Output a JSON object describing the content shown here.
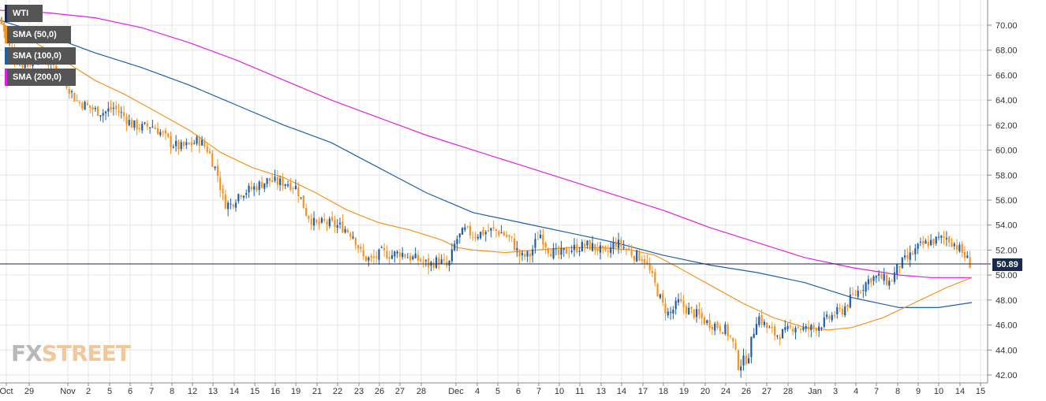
{
  "chart_data": {
    "type": "candlestick",
    "legend": [
      {
        "name": "WTI",
        "color": "#555555"
      },
      {
        "name": "SMA (50,0)",
        "color": "#f7931e"
      },
      {
        "name": "SMA (100,0)",
        "color": "#1f5fa8"
      },
      {
        "name": "SMA (200,0)",
        "color": "#e020e0"
      }
    ],
    "colors": {
      "up": "#1f5fa8",
      "down": "#f7931e",
      "sma50": "#f7931e",
      "sma100": "#1f5fa8",
      "sma200": "#e020e0",
      "grid": "#e6e6e6"
    },
    "ylim": [
      42,
      71.5
    ],
    "y_ticks": [
      "42.00",
      "44.00",
      "46.00",
      "48.00",
      "50.00",
      "52.00",
      "54.00",
      "56.00",
      "58.00",
      "60.00",
      "62.00",
      "64.00",
      "66.00",
      "68.00",
      "70.00"
    ],
    "x_ticks": [
      "Oct",
      "29",
      "Nov",
      "2",
      "5",
      "6",
      "7",
      "8",
      "12",
      "13",
      "14",
      "15",
      "16",
      "19",
      "21",
      "22",
      "23",
      "26",
      "27",
      "28",
      "Dec",
      "4",
      "5",
      "6",
      "7",
      "10",
      "11",
      "13",
      "14",
      "17",
      "18",
      "19",
      "20",
      "24",
      "26",
      "27",
      "28",
      "Jan",
      "3",
      "4",
      "7",
      "8",
      "9",
      "10",
      "14",
      "15"
    ],
    "current_price": "50.89",
    "grid": true,
    "bar_anchors": [
      [
        0,
        70.6
      ],
      [
        12,
        68.2
      ],
      [
        24,
        67.0
      ],
      [
        36,
        66.8
      ],
      [
        48,
        67.8
      ],
      [
        60,
        67.0
      ],
      [
        72,
        66.6
      ],
      [
        84,
        65.4
      ],
      [
        96,
        64.0
      ],
      [
        108,
        63.6
      ],
      [
        120,
        63.2
      ],
      [
        132,
        63.0
      ],
      [
        144,
        63.4
      ],
      [
        156,
        62.8
      ],
      [
        168,
        62.0
      ],
      [
        180,
        61.8
      ],
      [
        192,
        62.0
      ],
      [
        204,
        61.4
      ],
      [
        216,
        60.6
      ],
      [
        228,
        60.2
      ],
      [
        240,
        60.4
      ],
      [
        252,
        60.8
      ],
      [
        264,
        60.0
      ],
      [
        276,
        58.0
      ],
      [
        284,
        55.8
      ],
      [
        292,
        55.6
      ],
      [
        304,
        56.6
      ],
      [
        316,
        56.8
      ],
      [
        328,
        57.2
      ],
      [
        340,
        57.6
      ],
      [
        352,
        57.4
      ],
      [
        364,
        57.4
      ],
      [
        376,
        57.0
      ],
      [
        388,
        55.0
      ],
      [
        400,
        54.0
      ],
      [
        412,
        54.2
      ],
      [
        424,
        54.0
      ],
      [
        436,
        53.8
      ],
      [
        448,
        53.2
      ],
      [
        460,
        51.4
      ],
      [
        472,
        51.2
      ],
      [
        484,
        51.8
      ],
      [
        496,
        51.6
      ],
      [
        508,
        51.8
      ],
      [
        520,
        51.4
      ],
      [
        532,
        51.2
      ],
      [
        544,
        50.8
      ],
      [
        556,
        51.2
      ],
      [
        568,
        50.6
      ],
      [
        578,
        52.8
      ],
      [
        590,
        53.6
      ],
      [
        600,
        53.2
      ],
      [
        612,
        53.4
      ],
      [
        624,
        53.6
      ],
      [
        636,
        53.4
      ],
      [
        648,
        52.8
      ],
      [
        660,
        51.4
      ],
      [
        672,
        51.6
      ],
      [
        684,
        53.4
      ],
      [
        696,
        52.0
      ],
      [
        708,
        51.6
      ],
      [
        720,
        52.0
      ],
      [
        732,
        52.2
      ],
      [
        744,
        52.4
      ],
      [
        756,
        52.2
      ],
      [
        768,
        51.6
      ],
      [
        780,
        52.6
      ],
      [
        792,
        52.2
      ],
      [
        804,
        51.6
      ],
      [
        816,
        51.4
      ],
      [
        828,
        49.6
      ],
      [
        840,
        47.6
      ],
      [
        848,
        46.8
      ],
      [
        860,
        47.8
      ],
      [
        872,
        47.2
      ],
      [
        884,
        46.8
      ],
      [
        896,
        46.2
      ],
      [
        908,
        46.0
      ],
      [
        920,
        45.6
      ],
      [
        928,
        44.8
      ],
      [
        936,
        42.8
      ],
      [
        948,
        43.4
      ],
      [
        960,
        46.8
      ],
      [
        972,
        45.8
      ],
      [
        984,
        45.2
      ],
      [
        996,
        45.4
      ],
      [
        1008,
        46.0
      ],
      [
        1020,
        45.6
      ],
      [
        1032,
        45.8
      ],
      [
        1044,
        46.2
      ],
      [
        1056,
        46.8
      ],
      [
        1068,
        47.2
      ],
      [
        1080,
        48.2
      ],
      [
        1092,
        49.0
      ],
      [
        1104,
        49.8
      ],
      [
        1116,
        49.8
      ],
      [
        1128,
        49.4
      ],
      [
        1140,
        50.8
      ],
      [
        1152,
        51.4
      ],
      [
        1164,
        52.2
      ],
      [
        1176,
        52.6
      ],
      [
        1188,
        52.8
      ],
      [
        1200,
        53.0
      ],
      [
        1212,
        52.4
      ],
      [
        1222,
        51.6
      ],
      [
        1230,
        50.9
      ]
    ],
    "sma50": [
      [
        0,
        70.2
      ],
      [
        40,
        68.8
      ],
      [
        80,
        67.2
      ],
      [
        120,
        65.6
      ],
      [
        160,
        64.4
      ],
      [
        200,
        63.0
      ],
      [
        240,
        61.6
      ],
      [
        280,
        59.8
      ],
      [
        320,
        58.6
      ],
      [
        360,
        57.8
      ],
      [
        400,
        56.6
      ],
      [
        440,
        55.2
      ],
      [
        480,
        54.2
      ],
      [
        520,
        53.6
      ],
      [
        560,
        52.8
      ],
      [
        580,
        52.2
      ],
      [
        600,
        52.0
      ],
      [
        640,
        51.8
      ],
      [
        680,
        52.0
      ],
      [
        720,
        52.2
      ],
      [
        760,
        52.2
      ],
      [
        800,
        52.0
      ],
      [
        830,
        51.6
      ],
      [
        860,
        50.6
      ],
      [
        900,
        49.2
      ],
      [
        940,
        47.8
      ],
      [
        980,
        46.6
      ],
      [
        1020,
        45.8
      ],
      [
        1050,
        45.6
      ],
      [
        1080,
        45.8
      ],
      [
        1120,
        46.6
      ],
      [
        1160,
        47.8
      ],
      [
        1200,
        49.0
      ],
      [
        1232,
        49.8
      ]
    ],
    "sma100": [
      [
        0,
        70.4
      ],
      [
        60,
        69.2
      ],
      [
        120,
        67.8
      ],
      [
        180,
        66.6
      ],
      [
        240,
        65.2
      ],
      [
        300,
        63.6
      ],
      [
        360,
        62.0
      ],
      [
        420,
        60.6
      ],
      [
        480,
        58.6
      ],
      [
        540,
        56.6
      ],
      [
        600,
        55.0
      ],
      [
        660,
        54.2
      ],
      [
        720,
        53.4
      ],
      [
        780,
        52.6
      ],
      [
        840,
        51.6
      ],
      [
        900,
        50.8
      ],
      [
        960,
        50.2
      ],
      [
        1020,
        49.4
      ],
      [
        1080,
        48.2
      ],
      [
        1140,
        47.4
      ],
      [
        1190,
        47.4
      ],
      [
        1232,
        47.8
      ]
    ],
    "sma200": [
      [
        0,
        71.2
      ],
      [
        60,
        71.0
      ],
      [
        120,
        70.6
      ],
      [
        180,
        69.8
      ],
      [
        240,
        68.6
      ],
      [
        300,
        67.2
      ],
      [
        360,
        65.6
      ],
      [
        420,
        64.0
      ],
      [
        480,
        62.6
      ],
      [
        540,
        61.2
      ],
      [
        600,
        60.0
      ],
      [
        660,
        58.8
      ],
      [
        720,
        57.6
      ],
      [
        780,
        56.4
      ],
      [
        840,
        55.2
      ],
      [
        900,
        53.8
      ],
      [
        960,
        52.6
      ],
      [
        1020,
        51.4
      ],
      [
        1080,
        50.6
      ],
      [
        1140,
        50.0
      ],
      [
        1180,
        49.8
      ],
      [
        1232,
        49.8
      ]
    ]
  }
}
